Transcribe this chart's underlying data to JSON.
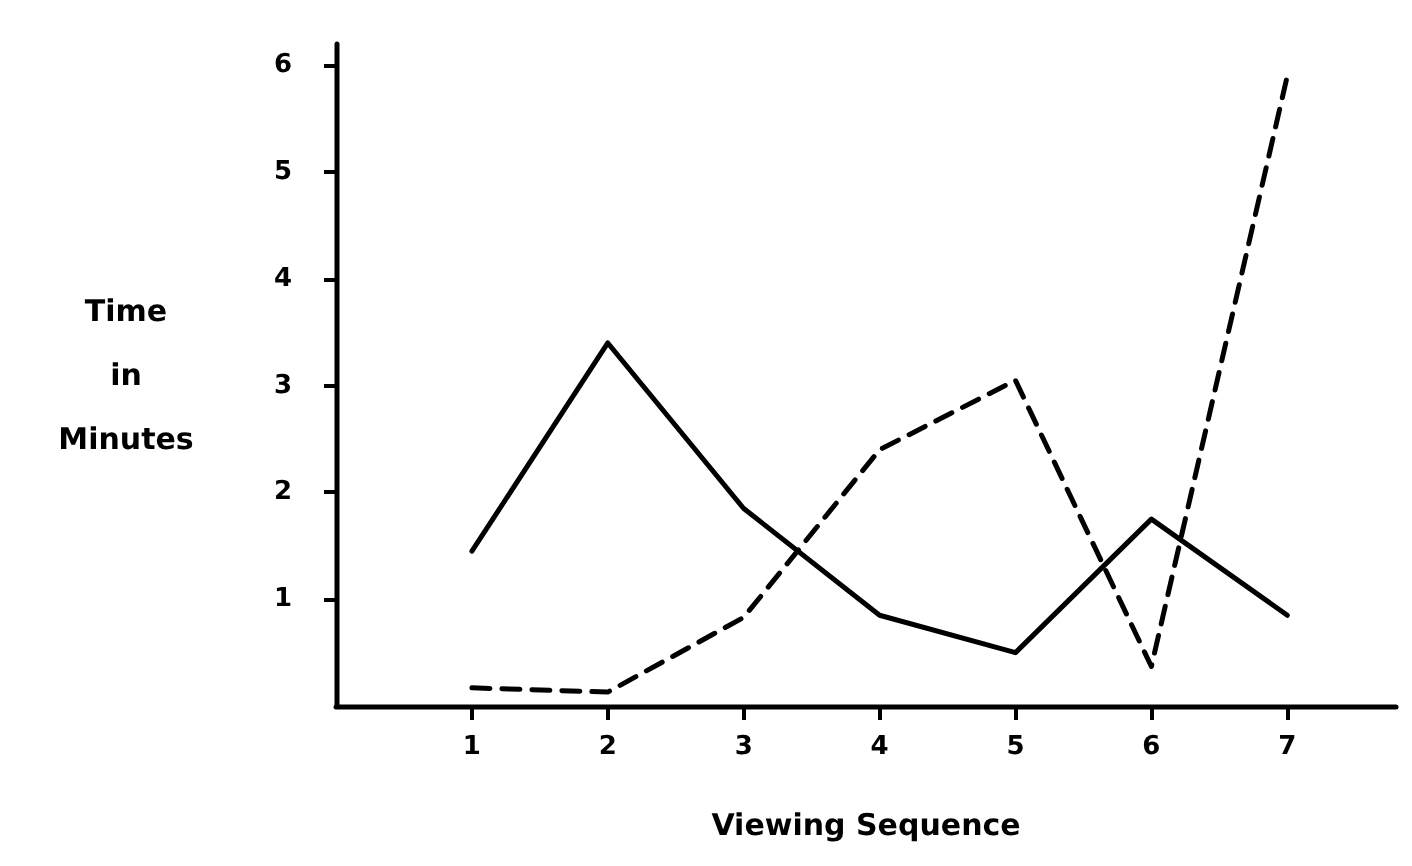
{
  "chart_data": {
    "type": "line",
    "xlabel": "Viewing Sequence",
    "ylabel": "Time in Minutes",
    "x": [
      1,
      2,
      3,
      4,
      5,
      6,
      7
    ],
    "series": [
      {
        "color": "#000000",
        "line_style": "solid",
        "values": [
          1.45,
          3.4,
          1.85,
          0.85,
          0.5,
          1.75,
          0.85
        ]
      },
      {
        "color": "#000000",
        "line_style": "dashed",
        "values": [
          0.17,
          0.13,
          0.83,
          2.4,
          3.05,
          0.37,
          5.9
        ]
      }
    ],
    "xlim": [
      0,
      7.8
    ],
    "xticks": [
      1,
      2,
      3,
      4,
      5,
      6,
      7
    ],
    "ylim": [
      0,
      6.2
    ],
    "yticks": [
      1,
      2,
      3,
      4,
      5,
      6
    ],
    "grid": false,
    "marker": "none"
  }
}
